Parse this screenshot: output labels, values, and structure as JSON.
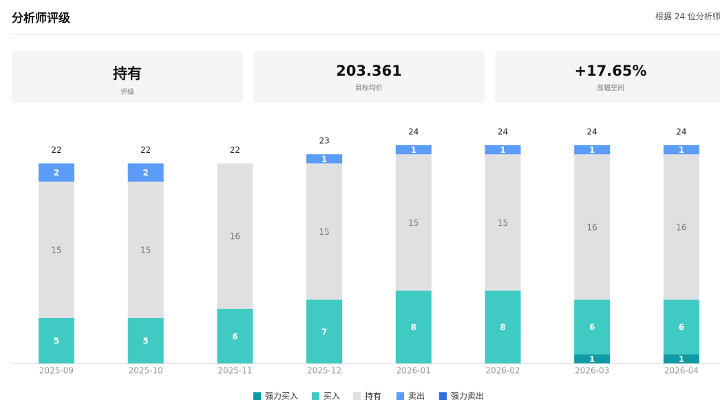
{
  "header": {
    "title": "分析师评级",
    "note": "根据 24 位分析师"
  },
  "cards": [
    {
      "value": "持有",
      "label": "评级"
    },
    {
      "value": "203.361",
      "label": "目标均价"
    },
    {
      "value": "+17.65%",
      "label": "涨幅空间"
    }
  ],
  "chart_data": {
    "type": "stacked-bar",
    "categories": [
      "2025-09",
      "2025-10",
      "2025-11",
      "2025-12",
      "2026-01",
      "2026-02",
      "2026-03",
      "2026-04"
    ],
    "series": [
      {
        "name": "强力买入",
        "color": "#0e9aa7",
        "values": [
          0,
          0,
          0,
          0,
          0,
          0,
          1,
          1
        ]
      },
      {
        "name": "买入",
        "color": "#3fcbc4",
        "values": [
          5,
          5,
          6,
          7,
          8,
          8,
          6,
          6
        ]
      },
      {
        "name": "持有",
        "color": "#e0e0e3",
        "values": [
          15,
          15,
          16,
          15,
          15,
          15,
          16,
          16
        ]
      },
      {
        "name": "卖出",
        "color": "#5b9cf8",
        "values": [
          2,
          2,
          0,
          1,
          1,
          1,
          1,
          1
        ]
      },
      {
        "name": "强力卖出",
        "color": "#2f6de1",
        "values": [
          0,
          0,
          0,
          0,
          0,
          0,
          0,
          0
        ]
      }
    ],
    "totals": [
      22,
      22,
      22,
      23,
      24,
      24,
      24,
      24
    ],
    "ylim": [
      0,
      24
    ]
  }
}
